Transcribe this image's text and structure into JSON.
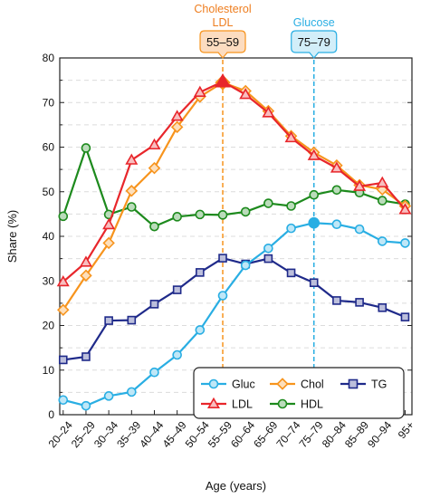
{
  "chart_data": {
    "type": "line",
    "xlabel": "Age (years)",
    "ylabel": "Share (%)",
    "ylim": [
      0,
      80
    ],
    "yticks": [
      0,
      10,
      20,
      30,
      40,
      50,
      60,
      70,
      80
    ],
    "grid": "horizontal dashed",
    "legend_position": "bottom-right",
    "categories": [
      "20–24",
      "25–29",
      "30–34",
      "35–39",
      "40–44",
      "45–49",
      "50–54",
      "55–59",
      "60–64",
      "65–69",
      "70–74",
      "75–79",
      "80–84",
      "85–89",
      "90–94",
      "95+"
    ],
    "series": [
      {
        "name": "Gluc",
        "color": "#29aee3",
        "marker": "circle",
        "values": [
          3.3,
          2.0,
          4.2,
          5.1,
          9.5,
          13.4,
          19.0,
          26.7,
          33.5,
          37.3,
          41.8,
          43.0,
          42.7,
          41.6,
          38.9,
          38.5
        ]
      },
      {
        "name": "Chol",
        "color": "#f7941d",
        "marker": "diamond",
        "values": [
          23.5,
          31.2,
          38.5,
          50.2,
          55.3,
          64.5,
          71.3,
          74.5,
          72.6,
          68.1,
          62.5,
          58.8,
          55.9,
          51.5,
          50.5,
          46.8
        ]
      },
      {
        "name": "TG",
        "color": "#1f2a8a",
        "marker": "square",
        "values": [
          12.3,
          13.0,
          21.1,
          21.2,
          24.8,
          28.0,
          31.9,
          35.1,
          33.8,
          35.0,
          31.8,
          29.6,
          25.6,
          25.2,
          24.0,
          21.9
        ]
      },
      {
        "name": "LDL",
        "color": "#e8262b",
        "marker": "triangle",
        "values": [
          29.8,
          34.2,
          42.6,
          57.1,
          60.5,
          66.9,
          72.3,
          74.7,
          71.8,
          67.7,
          62.1,
          58.1,
          55.3,
          51.2,
          52.0,
          46.0
        ]
      },
      {
        "name": "HDL",
        "color": "#1d8a1d",
        "marker": "circle",
        "values": [
          44.5,
          59.8,
          44.9,
          46.6,
          42.2,
          44.4,
          44.9,
          44.8,
          45.5,
          47.4,
          46.8,
          49.3,
          50.4,
          49.8,
          48.0,
          47.2
        ]
      }
    ],
    "annotations": [
      {
        "label_lines": [
          "Cholesterol",
          "LDL"
        ],
        "box": "55–59",
        "category": "55–59",
        "color": "#f7941d",
        "fill": "#fcdcc0",
        "label_color": "#ee7d1e"
      },
      {
        "label_lines": [
          "Glucose"
        ],
        "box": "75–79",
        "category": "75–79",
        "color": "#29aee3",
        "fill": "#d2eef9",
        "label_color": "#29aee3"
      }
    ]
  }
}
